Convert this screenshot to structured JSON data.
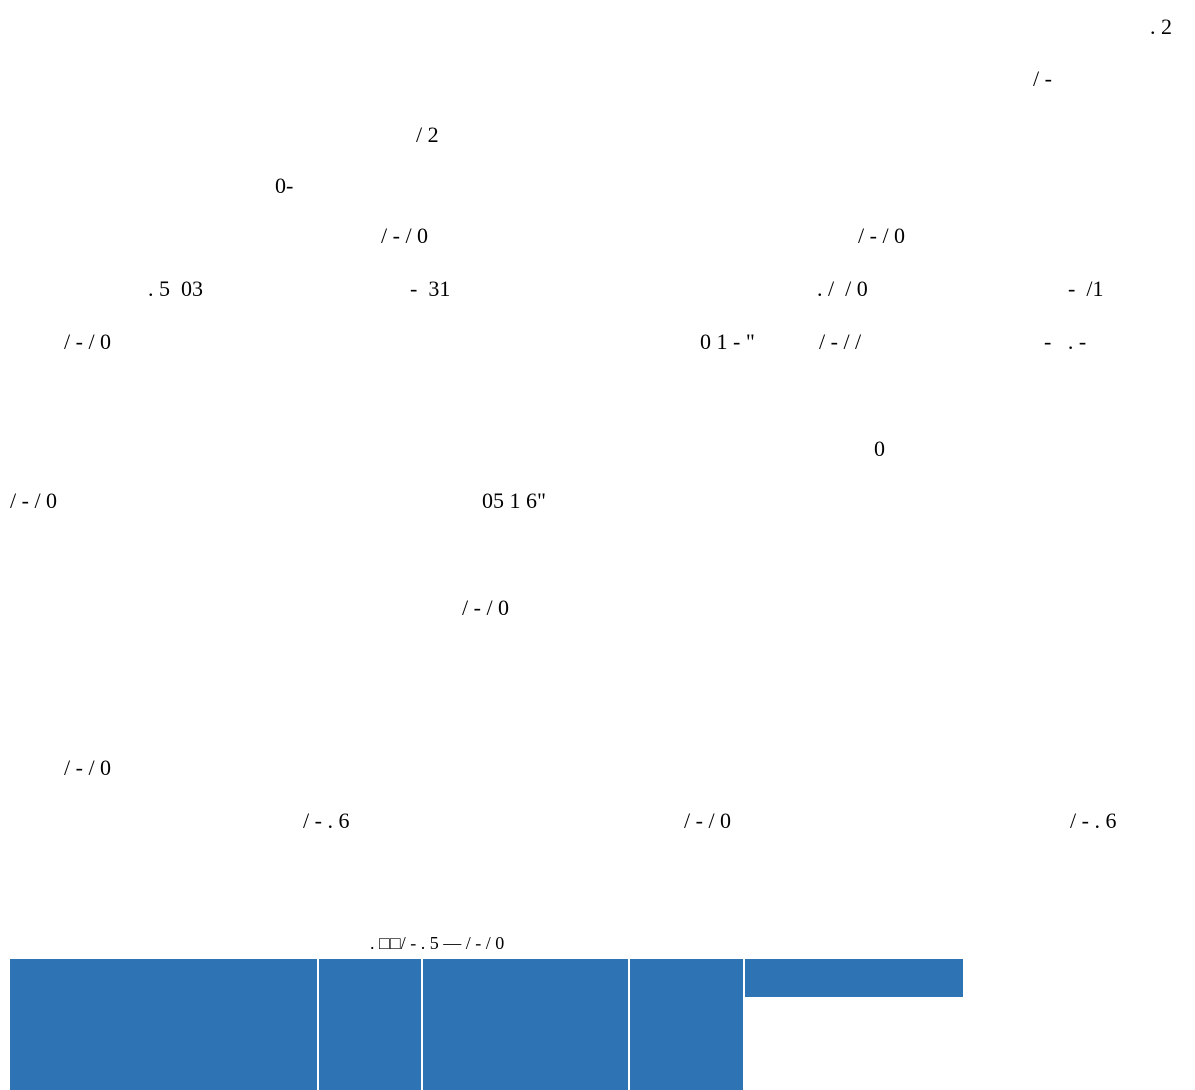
{
  "page": {
    "header_right": ". 2",
    "line_2_right": "/ -",
    "line_3": "/ 2",
    "line_4": "0-",
    "line_5_left": "/ - / 0",
    "line_5_right": "/ - / 0",
    "line_6_a": ". 5  03",
    "line_6_b": "-  31",
    "line_6_c": ". /  / 0",
    "line_6_d": "-  /1",
    "line_7_a": "/ - / 0",
    "line_7_b": "0 1 - \"",
    "line_7_c": "/ - / /",
    "line_7_d": "-   . -",
    "line_8": "0",
    "line_9_left": "/ - / 0",
    "line_9_right": "05 1 6\"",
    "line_10": "/ - / 0",
    "line_11": "/ - / 0",
    "line_12_a": "/ - . 6",
    "line_12_b": "/ - / 0",
    "line_12_c": "/ - . 6",
    "table_caption": ". □□/ - . 5 — / - / 0"
  },
  "colors": {
    "text": "#000000",
    "table_fill": "#2e74b5",
    "background": "#ffffff"
  }
}
